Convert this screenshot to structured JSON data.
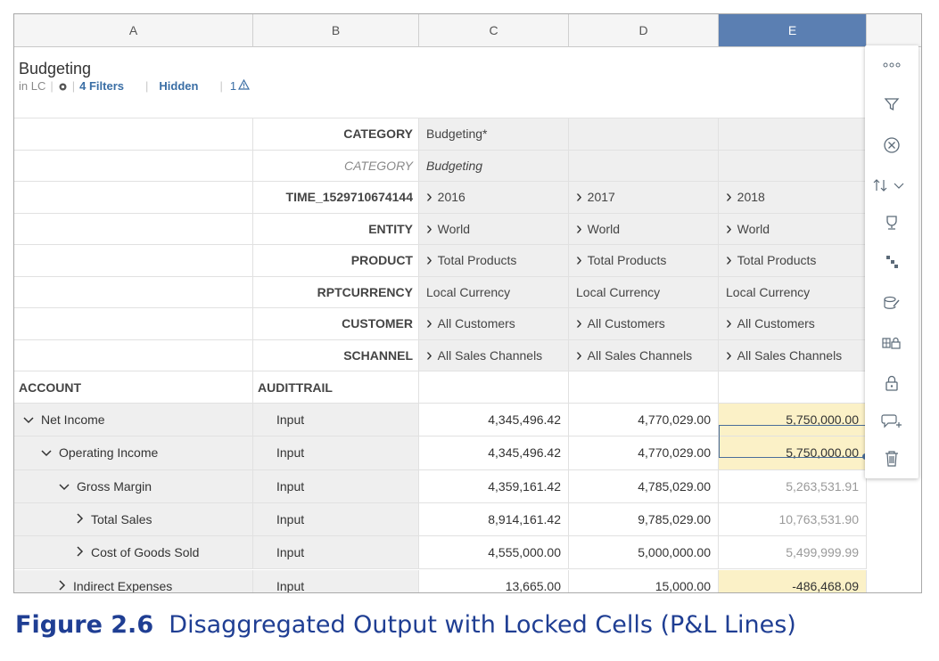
{
  "columns": [
    "A",
    "B",
    "C",
    "D",
    "E"
  ],
  "panel": {
    "title": "Budgeting",
    "scope": "in LC",
    "filters": "4 Filters",
    "hidden": "Hidden",
    "warnings": "1"
  },
  "dim_rows": [
    {
      "name": "CATEGORY",
      "italic": false,
      "vals": [
        "Budgeting*",
        "",
        ""
      ],
      "chev": false
    },
    {
      "name": "CATEGORY",
      "italic": true,
      "vals": [
        "Budgeting",
        "",
        ""
      ],
      "chev": false
    },
    {
      "name": "TIME_1529710674144",
      "italic": false,
      "vals": [
        "2016",
        "2017",
        "2018"
      ],
      "chev": true
    },
    {
      "name": "ENTITY",
      "italic": false,
      "vals": [
        "World",
        "World",
        "World"
      ],
      "chev": true
    },
    {
      "name": "PRODUCT",
      "italic": false,
      "vals": [
        "Total Products",
        "Total Products",
        "Total Products"
      ],
      "chev": true
    },
    {
      "name": "RPTCURRENCY",
      "italic": false,
      "vals": [
        "Local Currency",
        "Local Currency",
        "Local Currency"
      ],
      "chev": false
    },
    {
      "name": "CUSTOMER",
      "italic": false,
      "vals": [
        "All Customers",
        "All Customers",
        "All Customers"
      ],
      "chev": true
    },
    {
      "name": "SCHANNEL",
      "italic": false,
      "vals": [
        "All Sales Channels",
        "All Sales Channels",
        "All Sales Channels"
      ],
      "chev": true
    }
  ],
  "header_row": {
    "account": "ACCOUNT",
    "audit": "AUDITTRAIL"
  },
  "accounts": [
    {
      "label": "Net Income",
      "indent": 0,
      "expanded": true,
      "audit": "Input",
      "vals": [
        "4,345,496.42",
        "4,770,029.00",
        "5,750,000.00"
      ],
      "e_state": "locked"
    },
    {
      "label": "Operating Income",
      "indent": 1,
      "expanded": true,
      "audit": "Input",
      "vals": [
        "4,345,496.42",
        "4,770,029.00",
        "5,750,000.00"
      ],
      "e_state": "locked-selected"
    },
    {
      "label": "Gross Margin",
      "indent": 2,
      "expanded": true,
      "audit": "Input",
      "vals": [
        "4,359,161.42",
        "4,785,029.00",
        "5,263,531.91"
      ],
      "e_state": "disaggregated"
    },
    {
      "label": "Total Sales",
      "indent": 3,
      "expanded": false,
      "audit": "Input",
      "vals": [
        "8,914,161.42",
        "9,785,029.00",
        "10,763,531.90"
      ],
      "e_state": "disaggregated"
    },
    {
      "label": "Cost of Goods Sold",
      "indent": 3,
      "expanded": false,
      "audit": "Input",
      "vals": [
        "4,555,000.00",
        "5,000,000.00",
        "5,499,999.99"
      ],
      "e_state": "disaggregated"
    },
    {
      "label": "Indirect Expenses",
      "indent": 2,
      "expanded": false,
      "audit": "Input",
      "vals": [
        "13,665.00",
        "15,000.00",
        "-486,468.09"
      ],
      "e_state": "locked"
    }
  ],
  "toolbar": [
    "more-icon",
    "filter-icon",
    "remove-icon",
    "sort-icon",
    "rank-icon",
    "hierarchy-icon",
    "data-entry-icon",
    "lock-members-icon",
    "lock-icon",
    "add-comment-icon",
    "delete-icon"
  ],
  "colors": {
    "selected_header": "#5b7fb2",
    "locked": "#fbf1c7",
    "caption": "#1f3e93"
  },
  "caption": {
    "label": "Figure 2.6",
    "text": "Disaggregated Output with Locked Cells (P&L Lines)"
  }
}
